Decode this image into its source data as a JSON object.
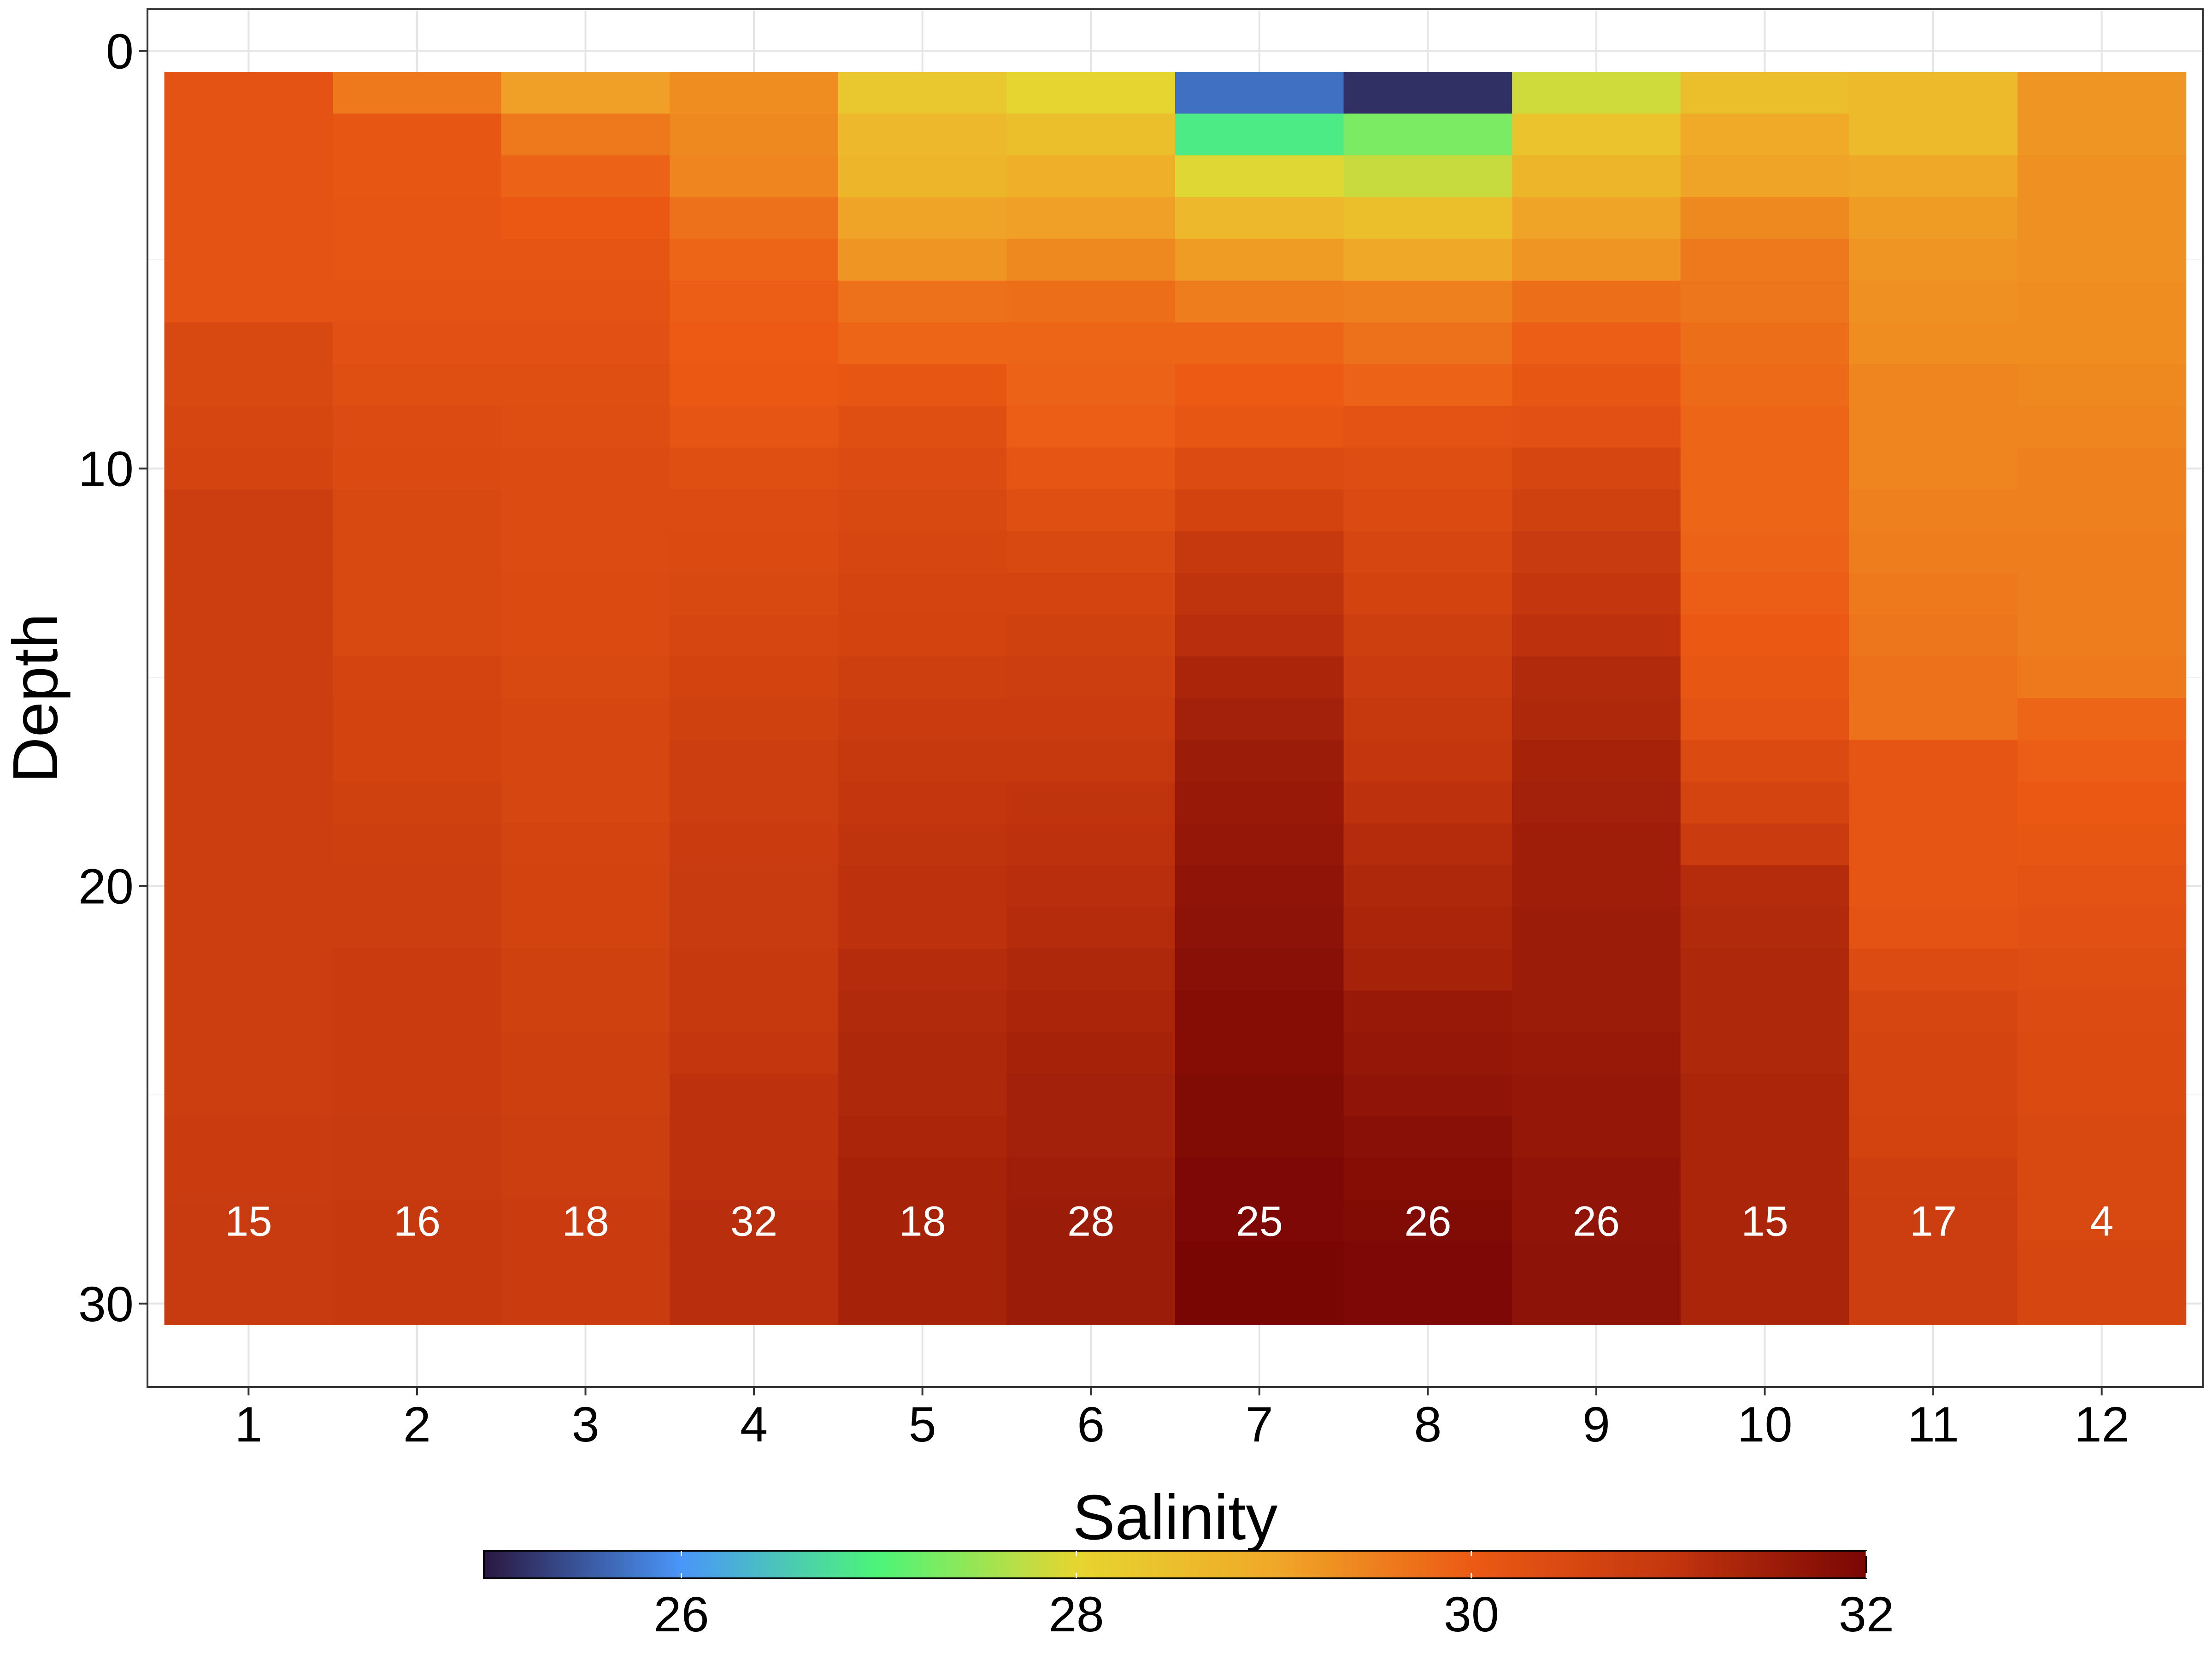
{
  "chart_data": {
    "type": "heatmap",
    "title": "",
    "xlabel": "",
    "ylabel": "Depth",
    "x": [
      1,
      2,
      3,
      4,
      5,
      6,
      7,
      8,
      9,
      10,
      11,
      12
    ],
    "x_ticks": [
      "1",
      "2",
      "3",
      "4",
      "5",
      "6",
      "7",
      "8",
      "9",
      "10",
      "11",
      "12"
    ],
    "y_ticks": [
      "0",
      "10",
      "20",
      "30"
    ],
    "ylim": [
      -1,
      32
    ],
    "y_reversed": true,
    "depths": [
      1,
      2,
      3,
      4,
      5,
      6,
      7,
      8,
      9,
      10,
      11,
      12,
      13,
      14,
      15,
      16,
      17,
      18,
      19,
      20,
      21,
      22,
      23,
      24,
      25,
      26,
      27,
      28,
      29,
      30
    ],
    "grid": true,
    "colorbar": {
      "title": "Salinity",
      "range": [
        25,
        32
      ],
      "ticks": [
        "26",
        "28",
        "30",
        "32"
      ],
      "position": "bottom",
      "colors": [
        "#2a1740",
        "#4a96fa",
        "#4cf578",
        "#e6d530",
        "#f0a828",
        "#ec5a14",
        "#c4360e",
        "#7a0604"
      ]
    },
    "columns": [
      {
        "x": 1,
        "count": "15",
        "salinity": [
          30.2,
          30.2,
          30.2,
          30.2,
          30.2,
          30.2,
          30.5,
          30.5,
          30.55,
          30.6,
          30.8,
          30.8,
          30.8,
          30.8,
          30.8,
          30.8,
          30.8,
          30.8,
          30.8,
          30.8,
          30.8,
          30.8,
          30.8,
          30.8,
          30.8,
          30.85,
          30.85,
          30.9,
          30.9,
          30.9
        ]
      },
      {
        "x": 2,
        "count": "16",
        "salinity": [
          29.6,
          30.1,
          30.1,
          30.15,
          30.15,
          30.2,
          30.25,
          30.3,
          30.4,
          30.45,
          30.5,
          30.5,
          30.5,
          30.5,
          30.6,
          30.65,
          30.65,
          30.7,
          30.75,
          30.8,
          30.8,
          30.85,
          30.85,
          30.85,
          30.85,
          30.9,
          30.9,
          30.95,
          30.95,
          30.95
        ]
      },
      {
        "x": 3,
        "count": "18",
        "salinity": [
          29.1,
          29.6,
          29.9,
          30.05,
          30.15,
          30.2,
          30.25,
          30.3,
          30.35,
          30.4,
          30.4,
          30.4,
          30.45,
          30.45,
          30.5,
          30.55,
          30.55,
          30.55,
          30.6,
          30.65,
          30.65,
          30.7,
          30.7,
          30.75,
          30.75,
          30.8,
          30.8,
          30.85,
          30.85,
          30.85
        ]
      },
      {
        "x": 4,
        "count": "32",
        "salinity": [
          29.35,
          29.4,
          29.45,
          29.7,
          29.85,
          29.95,
          30.0,
          30.05,
          30.15,
          30.3,
          30.4,
          30.45,
          30.5,
          30.55,
          30.65,
          30.7,
          30.8,
          30.8,
          30.85,
          30.9,
          30.9,
          30.95,
          30.95,
          31.0,
          31.1,
          31.1,
          31.1,
          31.15,
          31.15,
          31.15
        ]
      },
      {
        "x": 5,
        "count": "18",
        "salinity": [
          28.3,
          28.65,
          28.7,
          29.05,
          29.25,
          29.7,
          29.85,
          30.1,
          30.3,
          30.4,
          30.5,
          30.55,
          30.6,
          30.65,
          30.75,
          30.85,
          30.95,
          31.0,
          31.05,
          31.1,
          31.1,
          31.2,
          31.25,
          31.3,
          31.3,
          31.35,
          31.4,
          31.4,
          31.4,
          31.4
        ]
      },
      {
        "x": 6,
        "count": "28",
        "salinity": [
          28.0,
          28.5,
          28.85,
          29.1,
          29.4,
          29.75,
          29.85,
          29.9,
          29.95,
          30.15,
          30.3,
          30.5,
          30.6,
          30.7,
          30.8,
          30.85,
          30.95,
          31.05,
          31.1,
          31.15,
          31.2,
          31.3,
          31.35,
          31.4,
          31.45,
          31.45,
          31.5,
          31.55,
          31.55,
          31.55
        ]
      },
      {
        "x": 7,
        "count": "25",
        "salinity": [
          25.7,
          26.9,
          27.95,
          28.65,
          29.15,
          29.55,
          29.85,
          30.0,
          30.1,
          30.4,
          30.65,
          30.95,
          31.05,
          31.15,
          31.35,
          31.45,
          31.55,
          31.6,
          31.65,
          31.7,
          31.75,
          31.8,
          31.85,
          31.85,
          31.9,
          31.9,
          31.95,
          31.95,
          32.0,
          32.0
        ]
      },
      {
        "x": 8,
        "count": "26",
        "salinity": [
          25.2,
          27.3,
          27.8,
          28.5,
          29.0,
          29.5,
          29.7,
          29.9,
          30.2,
          30.35,
          30.45,
          30.55,
          30.65,
          30.75,
          30.85,
          30.95,
          31.0,
          31.1,
          31.2,
          31.3,
          31.35,
          31.4,
          31.6,
          31.65,
          31.7,
          31.8,
          31.85,
          31.9,
          31.95,
          31.95
        ]
      },
      {
        "x": 9,
        "count": "26",
        "salinity": [
          27.85,
          28.4,
          28.7,
          29.05,
          29.25,
          29.75,
          29.95,
          30.1,
          30.25,
          30.55,
          30.7,
          30.9,
          31.0,
          31.1,
          31.25,
          31.3,
          31.4,
          31.45,
          31.5,
          31.5,
          31.55,
          31.55,
          31.55,
          31.6,
          31.65,
          31.65,
          31.7,
          31.7,
          31.75,
          31.75
        ]
      },
      {
        "x": 10,
        "count": "15",
        "salinity": [
          28.5,
          28.95,
          29.05,
          29.4,
          29.6,
          29.65,
          29.75,
          29.8,
          29.85,
          29.85,
          29.85,
          29.9,
          29.95,
          30.05,
          30.1,
          30.2,
          30.45,
          30.6,
          30.85,
          31.2,
          31.25,
          31.3,
          31.3,
          31.3,
          31.35,
          31.35,
          31.35,
          31.35,
          31.35,
          31.35
        ]
      },
      {
        "x": 11,
        "count": "17",
        "salinity": [
          28.6,
          28.6,
          29.0,
          29.15,
          29.25,
          29.3,
          29.35,
          29.45,
          29.45,
          29.45,
          29.5,
          29.55,
          29.6,
          29.65,
          29.7,
          29.7,
          30.15,
          30.15,
          30.15,
          30.15,
          30.2,
          30.4,
          30.55,
          30.6,
          30.6,
          30.65,
          30.75,
          30.8,
          30.8,
          30.8
        ]
      },
      {
        "x": 12,
        "count": "4",
        "salinity": [
          29.25,
          29.25,
          29.3,
          29.3,
          29.3,
          29.35,
          29.35,
          29.4,
          29.45,
          29.5,
          29.5,
          29.55,
          29.55,
          29.55,
          29.6,
          29.85,
          29.95,
          30.05,
          30.1,
          30.2,
          30.25,
          30.35,
          30.4,
          30.45,
          30.45,
          30.5,
          30.5,
          30.5,
          30.55,
          30.55
        ]
      }
    ]
  }
}
